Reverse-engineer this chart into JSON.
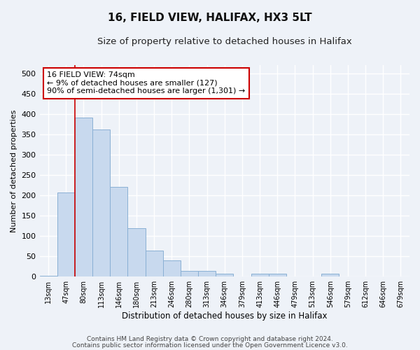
{
  "title1": "16, FIELD VIEW, HALIFAX, HX3 5LT",
  "title2": "Size of property relative to detached houses in Halifax",
  "xlabel": "Distribution of detached houses by size in Halifax",
  "ylabel": "Number of detached properties",
  "categories": [
    "13sqm",
    "47sqm",
    "80sqm",
    "113sqm",
    "146sqm",
    "180sqm",
    "213sqm",
    "246sqm",
    "280sqm",
    "313sqm",
    "346sqm",
    "379sqm",
    "413sqm",
    "446sqm",
    "479sqm",
    "513sqm",
    "546sqm",
    "579sqm",
    "612sqm",
    "646sqm",
    "679sqm"
  ],
  "values": [
    2,
    207,
    390,
    362,
    220,
    118,
    63,
    40,
    14,
    14,
    7,
    0,
    7,
    7,
    0,
    0,
    7,
    0,
    0,
    0,
    0
  ],
  "bar_color": "#c8d9ee",
  "bar_edge_color": "#8ab0d4",
  "vline_x": 1.5,
  "vline_color": "#cc0000",
  "ylim": [
    0,
    520
  ],
  "yticks": [
    0,
    50,
    100,
    150,
    200,
    250,
    300,
    350,
    400,
    450,
    500
  ],
  "annotation_text": "16 FIELD VIEW: 74sqm\n← 9% of detached houses are smaller (127)\n90% of semi-detached houses are larger (1,301) →",
  "annotation_box_color": "#ffffff",
  "annotation_box_edgecolor": "#cc0000",
  "footer1": "Contains HM Land Registry data © Crown copyright and database right 2024.",
  "footer2": "Contains public sector information licensed under the Open Government Licence v3.0.",
  "bg_color": "#eef2f8",
  "plot_bg_color": "#eef2f8",
  "grid_color": "#ffffff",
  "title1_fontsize": 11,
  "title2_fontsize": 9.5
}
